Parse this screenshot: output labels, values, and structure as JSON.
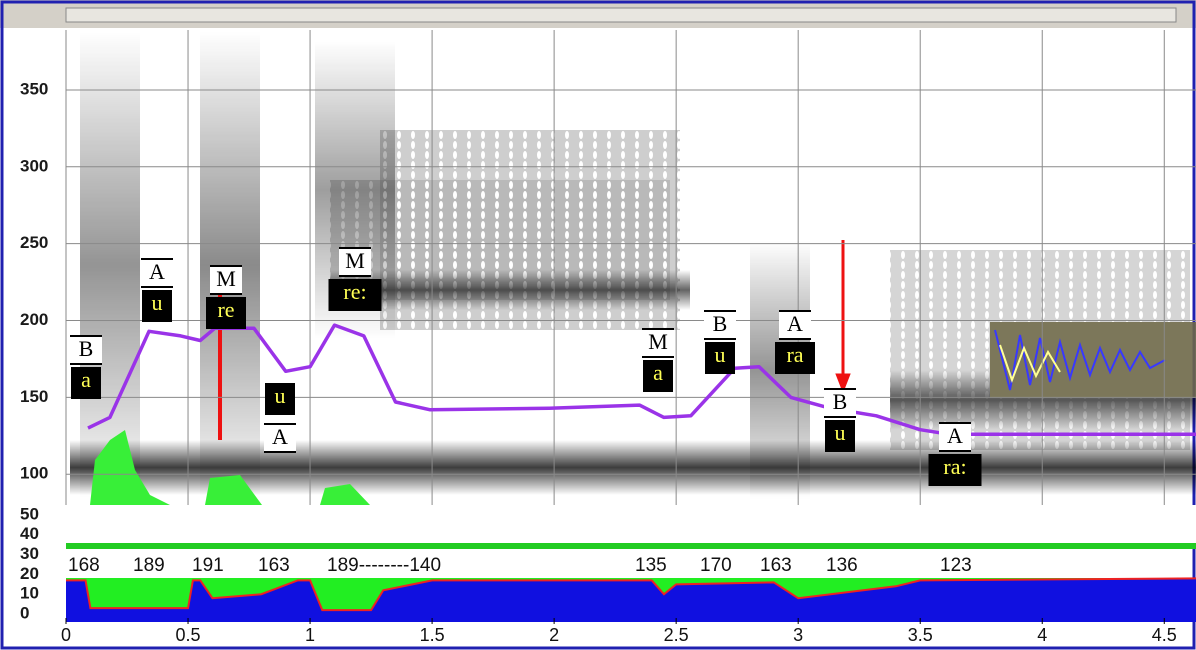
{
  "chart_data": [
    {
      "type": "line",
      "ylim": [
        80,
        389
      ],
      "yticks": [
        100,
        150,
        200,
        250,
        300,
        350
      ],
      "grid": true,
      "series": [
        {
          "color": "#9a33e8",
          "x": [
            0.09,
            0.18,
            0.34,
            0.47,
            0.55,
            0.61,
            0.77,
            0.9,
            1.0,
            1.1,
            1.22,
            1.35,
            1.49,
            1.98,
            2.35,
            2.45,
            2.56,
            2.74,
            2.84,
            2.97,
            3.13,
            3.32,
            3.5,
            3.62,
            4.63
          ],
          "values": [
            130,
            137,
            193,
            190,
            187,
            195,
            195,
            167,
            170,
            197,
            190,
            147,
            142,
            143,
            145,
            137,
            138,
            169,
            170,
            150,
            143,
            138,
            129,
            126,
            126
          ]
        }
      ],
      "annotations": [
        {
          "tone": "B",
          "syllable": "a"
        },
        {
          "tone": "A",
          "syllable": "u"
        },
        {
          "tone": "M",
          "syllable": "re"
        },
        {
          "tone": "A",
          "syllable": "u"
        },
        {
          "tone": "M",
          "syllable": "re:"
        },
        {
          "tone": "M",
          "syllable": "a"
        },
        {
          "tone": "B",
          "syllable": "u"
        },
        {
          "tone": "A",
          "syllable": "ra"
        },
        {
          "tone": "B",
          "syllable": "u"
        },
        {
          "tone": "A",
          "syllable": "ra:"
        }
      ],
      "pitch_readings": [
        "168",
        "189",
        "191",
        "163",
        "189--------140",
        "135",
        "170",
        "163",
        "136",
        "123"
      ]
    },
    {
      "type": "area",
      "ylim": [
        -4,
        55
      ],
      "yticks": [
        0,
        10,
        20,
        30,
        40,
        50
      ],
      "xlim": [
        0,
        4.63
      ],
      "xticks": [
        0,
        0.5,
        1,
        1.5,
        2,
        2.5,
        3,
        3.5,
        4,
        4.5
      ],
      "series": [
        {
          "color": "#1010e0",
          "x": [
            0,
            0.08,
            0.1,
            0.5,
            0.52,
            0.55,
            0.6,
            0.8,
            0.95,
            1.0,
            1.05,
            1.25,
            1.3,
            1.5,
            2.4,
            2.45,
            2.5,
            2.9,
            3.0,
            3.4,
            3.5,
            4.63
          ],
          "values": [
            17,
            17,
            3,
            3,
            17,
            17,
            8,
            10,
            17,
            17,
            2,
            2,
            12,
            17,
            17,
            10,
            15,
            16,
            8,
            14,
            17,
            18
          ]
        }
      ]
    }
  ]
}
